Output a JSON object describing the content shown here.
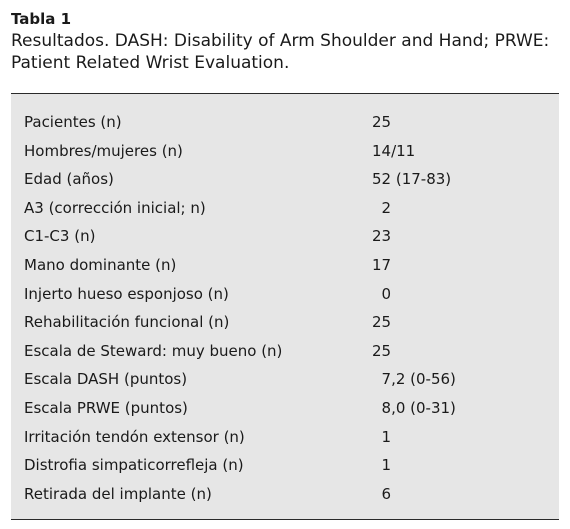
{
  "caption": {
    "label": "Tabla 1",
    "line1": "Resultados. DASH: Disability of Arm Shoulder and Hand; PRWE:",
    "line2": "Patient Related Wrist Evaluation."
  },
  "table": {
    "rows": [
      {
        "label": "Pacientes (n)",
        "value": "25"
      },
      {
        "label": "Hombres/mujeres (n)",
        "value": "14/11"
      },
      {
        "label": "Edad (años)",
        "value": "52 (17-83)"
      },
      {
        "label": "A3 (corrección inicial; n)",
        "value": "  2"
      },
      {
        "label": "C1-C3 (n)",
        "value": "23"
      },
      {
        "label": "Mano dominante (n)",
        "value": "17"
      },
      {
        "label": "Injerto hueso esponjoso (n)",
        "value": "  0"
      },
      {
        "label": "Rehabilitación funcional (n)",
        "value": "25"
      },
      {
        "label": "Escala de Steward: muy bueno (n)",
        "value": "25"
      },
      {
        "label": "Escala DASH (puntos)",
        "value": "  7,2 (0-56)"
      },
      {
        "label": "Escala PRWE (puntos)",
        "value": "  8,0 (0-31)"
      },
      {
        "label": "Irritación tendón extensor (n)",
        "value": "  1"
      },
      {
        "label": "Distrofia simpaticorrefleja (n)",
        "value": "  1"
      },
      {
        "label": "Retirada del implante (n)",
        "value": "  6"
      }
    ]
  }
}
